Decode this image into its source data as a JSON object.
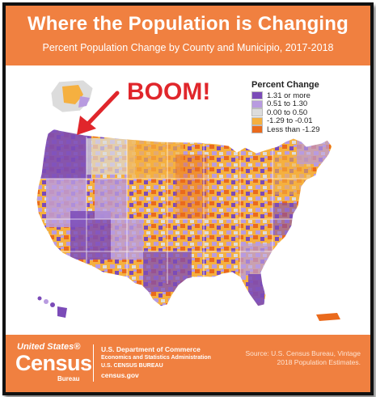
{
  "header": {
    "title": "Where the Population is Changing",
    "subtitle": "Percent Population Change by County and Municipio, 2017-2018"
  },
  "annotation": {
    "label": "BOOM!",
    "color": "#e0262b"
  },
  "legend": {
    "title": "Percent Change",
    "items": [
      {
        "label": "1.31 or more",
        "color": "#7b4bb8"
      },
      {
        "label": "0.51 to 1.30",
        "color": "#b89be0"
      },
      {
        "label": "0.00 to 0.50",
        "color": "#dcdcdc"
      },
      {
        "label": "-1.29 to -0.01",
        "color": "#f5b040"
      },
      {
        "label": "Less than -1.29",
        "color": "#ea6a1c"
      }
    ]
  },
  "footer": {
    "logo_top": "United States®",
    "logo_main": "Census",
    "logo_bureau": "Bureau",
    "dept_lines": [
      "U.S. Department of Commerce",
      "Economics and Statistics Administration",
      "U.S. CENSUS BUREAU",
      "census.gov"
    ],
    "source_lines": [
      "Source: U.S. Census Bureau, Vintage",
      "2018 Population Estimates."
    ]
  },
  "colors": {
    "brand_orange": "#f08040",
    "purple_dark": "#7b4bb8",
    "purple_light": "#b89be0",
    "gray": "#dcdcdc",
    "orange_light": "#f5b040",
    "orange_dark": "#ea6a1c"
  }
}
